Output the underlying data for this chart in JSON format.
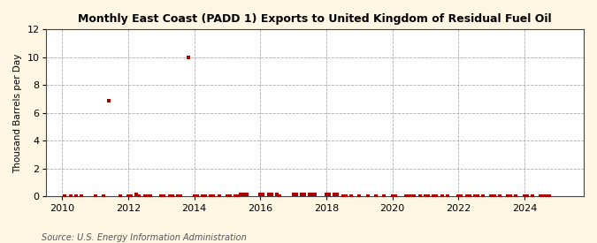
{
  "title": "Monthly East Coast (PADD 1) Exports to United Kingdom of Residual Fuel Oil",
  "ylabel": "Thousand Barrels per Day",
  "source_text": "Source: U.S. Energy Information Administration",
  "background_color": "#fdf6e3",
  "plot_bg_color": "#ffffff",
  "marker_color": "#aa0000",
  "ylim": [
    0,
    12
  ],
  "yticks": [
    0,
    2,
    4,
    6,
    8,
    10,
    12
  ],
  "xlim_start": 2009.5,
  "xlim_end": 2025.8,
  "xticks": [
    2010,
    2012,
    2014,
    2016,
    2018,
    2020,
    2022,
    2024
  ],
  "scatter_points": [
    [
      2010.083,
      0.0
    ],
    [
      2010.25,
      0.0
    ],
    [
      2010.417,
      0.0
    ],
    [
      2010.583,
      0.0
    ],
    [
      2011.0,
      0.0
    ],
    [
      2011.25,
      0.0
    ],
    [
      2011.417,
      6.9
    ],
    [
      2011.75,
      0.0
    ],
    [
      2012.0,
      0.0
    ],
    [
      2012.083,
      0.0
    ],
    [
      2012.25,
      0.15
    ],
    [
      2012.333,
      0.0
    ],
    [
      2012.5,
      0.0
    ],
    [
      2012.583,
      0.0
    ],
    [
      2012.667,
      0.0
    ],
    [
      2013.0,
      0.0
    ],
    [
      2013.083,
      0.0
    ],
    [
      2013.25,
      0.0
    ],
    [
      2013.333,
      0.0
    ],
    [
      2013.5,
      0.0
    ],
    [
      2013.583,
      0.0
    ],
    [
      2013.833,
      10.0
    ],
    [
      2014.0,
      0.0
    ],
    [
      2014.083,
      0.0
    ],
    [
      2014.25,
      0.0
    ],
    [
      2014.333,
      0.0
    ],
    [
      2014.5,
      0.0
    ],
    [
      2014.583,
      0.0
    ],
    [
      2014.75,
      0.0
    ],
    [
      2015.0,
      0.0
    ],
    [
      2015.083,
      0.0
    ],
    [
      2015.25,
      0.0
    ],
    [
      2015.333,
      0.0
    ],
    [
      2015.417,
      0.15
    ],
    [
      2015.5,
      0.15
    ],
    [
      2015.583,
      0.15
    ],
    [
      2016.0,
      0.15
    ],
    [
      2016.083,
      0.15
    ],
    [
      2016.25,
      0.15
    ],
    [
      2016.333,
      0.15
    ],
    [
      2016.5,
      0.15
    ],
    [
      2016.583,
      0.0
    ],
    [
      2017.0,
      0.15
    ],
    [
      2017.083,
      0.15
    ],
    [
      2017.25,
      0.15
    ],
    [
      2017.333,
      0.15
    ],
    [
      2017.5,
      0.15
    ],
    [
      2017.583,
      0.15
    ],
    [
      2017.667,
      0.15
    ],
    [
      2018.0,
      0.15
    ],
    [
      2018.083,
      0.15
    ],
    [
      2018.25,
      0.15
    ],
    [
      2018.333,
      0.15
    ],
    [
      2018.5,
      0.0
    ],
    [
      2018.583,
      0.0
    ],
    [
      2018.75,
      0.0
    ],
    [
      2019.0,
      0.0
    ],
    [
      2019.25,
      0.0
    ],
    [
      2019.5,
      0.0
    ],
    [
      2019.75,
      0.0
    ],
    [
      2020.0,
      0.0
    ],
    [
      2020.083,
      0.0
    ],
    [
      2020.417,
      0.0
    ],
    [
      2020.5,
      0.0
    ],
    [
      2020.583,
      0.0
    ],
    [
      2020.667,
      0.0
    ],
    [
      2020.833,
      0.0
    ],
    [
      2021.0,
      0.0
    ],
    [
      2021.083,
      0.0
    ],
    [
      2021.25,
      0.0
    ],
    [
      2021.333,
      0.0
    ],
    [
      2021.5,
      0.0
    ],
    [
      2021.667,
      0.0
    ],
    [
      2022.0,
      0.0
    ],
    [
      2022.083,
      0.0
    ],
    [
      2022.25,
      0.0
    ],
    [
      2022.333,
      0.0
    ],
    [
      2022.5,
      0.0
    ],
    [
      2022.583,
      0.0
    ],
    [
      2022.75,
      0.0
    ],
    [
      2023.0,
      0.0
    ],
    [
      2023.083,
      0.0
    ],
    [
      2023.25,
      0.0
    ],
    [
      2023.5,
      0.0
    ],
    [
      2023.583,
      0.0
    ],
    [
      2023.75,
      0.0
    ],
    [
      2024.0,
      0.0
    ],
    [
      2024.083,
      0.0
    ],
    [
      2024.25,
      0.0
    ],
    [
      2024.5,
      0.0
    ],
    [
      2024.583,
      0.0
    ],
    [
      2024.667,
      0.0
    ],
    [
      2024.75,
      0.0
    ]
  ]
}
